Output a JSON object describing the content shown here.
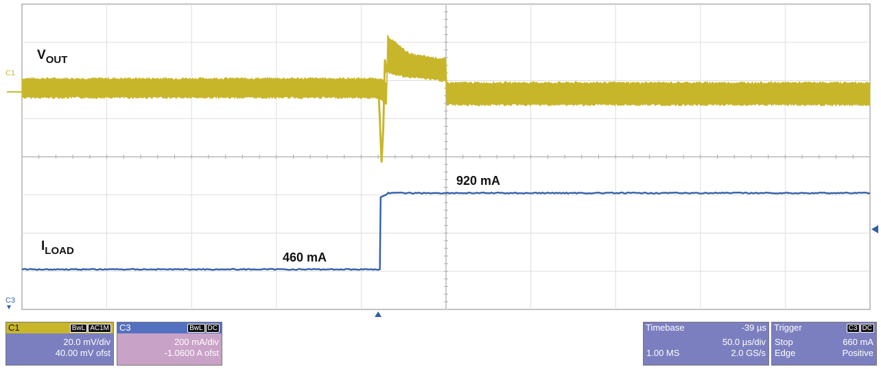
{
  "chart_data": {
    "type": "line",
    "title": "",
    "grid": true,
    "divisions": {
      "x": 10,
      "y": 8
    },
    "series": [
      {
        "name": "VOUT",
        "channel": "C1",
        "color": "#c8b62a",
        "segments": [
          {
            "t": [
              0,
              4.2
            ],
            "level": 2.2,
            "noise": 0.16
          },
          {
            "t": [
              4.2,
              4.24
            ],
            "level": 2.6
          },
          {
            "t": [
              4.24,
              4.3
            ],
            "level": 0.05
          },
          {
            "t": [
              4.3,
              10
            ],
            "level": 1.65,
            "noise": 0.2
          }
        ],
        "overshoot_level": 2.7,
        "settle_level": 1.65
      },
      {
        "name": "ILOAD",
        "channel": "C3",
        "color": "#2f5ea8",
        "segments": [
          {
            "t": [
              0,
              4.2
            ],
            "value_mA": 460
          },
          {
            "t": [
              4.2,
              4.25
            ],
            "value_mA": 460
          },
          {
            "t": [
              4.25,
              10
            ],
            "value_mA": 920
          }
        ]
      }
    ],
    "annotations": [
      {
        "text": "V",
        "sub": "OUT"
      },
      {
        "text": "I",
        "sub": "LOAD"
      },
      {
        "text": "460 mA"
      },
      {
        "text": "920 mA"
      }
    ],
    "channel_markers": {
      "c1": "C1",
      "c3": "C3"
    }
  },
  "panels": {
    "c1": {
      "label": "C1",
      "badges": [
        "BwL",
        "AC1M"
      ],
      "scale": "20.0 mV/div",
      "offset": "40.00 mV ofst",
      "color": "#c8b62a",
      "body": "#7b7fbf"
    },
    "c3": {
      "label": "C3",
      "badges": [
        "BwL",
        "DC"
      ],
      "scale": "200 mA/div",
      "offset": "-1.0600 A ofst",
      "color": "#5470c0",
      "body": "#c9a2c7"
    },
    "timebase": {
      "label": "Timebase",
      "delay": "-39 µs",
      "scale": "50.0 µs/div",
      "samples": "1.00 MS",
      "rate": "2.0 GS/s"
    },
    "trigger": {
      "label": "Trigger",
      "badges": [
        "C3",
        "DC"
      ],
      "mode": "Stop",
      "level": "660 mA",
      "type": "Edge",
      "slope": "Positive"
    }
  }
}
